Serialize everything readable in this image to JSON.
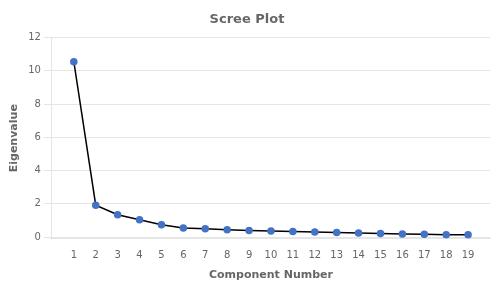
{
  "chart_data": {
    "type": "line",
    "title": "Scree Plot",
    "x_label": "Component Number",
    "y_label": "Eigenvalue",
    "x": [
      1,
      2,
      3,
      4,
      5,
      6,
      7,
      8,
      9,
      10,
      11,
      12,
      13,
      14,
      15,
      16,
      17,
      18,
      19
    ],
    "values": [
      10.55,
      1.92,
      1.35,
      1.05,
      0.75,
      0.55,
      0.5,
      0.45,
      0.4,
      0.37,
      0.34,
      0.31,
      0.28,
      0.25,
      0.22,
      0.19,
      0.17,
      0.15,
      0.14
    ],
    "color": "#000000",
    "colors": [
      "#4472C4",
      "#4472C4",
      "#4472C4",
      "#4472C4",
      "#4472C4",
      "#4472C4",
      "#4472C4",
      "#4472C4",
      "#4472C4",
      "#4472C4",
      "#4472C4",
      "#4472C4",
      "#4472C4",
      "#4472C4",
      "#4472C4",
      "#4472C4",
      "#4472C4",
      "#4472C4",
      "#4472C4"
    ],
    "marker": "circle",
    "xlim": [
      0,
      20
    ],
    "xticks": [
      1,
      2,
      3,
      4,
      5,
      6,
      7,
      8,
      9,
      10,
      11,
      12,
      13,
      14,
      15,
      16,
      17,
      18,
      19
    ],
    "ylim": [
      -0.1,
      12
    ],
    "yticks": [
      0,
      2,
      4,
      6,
      8,
      10,
      12
    ],
    "grid": "y"
  }
}
